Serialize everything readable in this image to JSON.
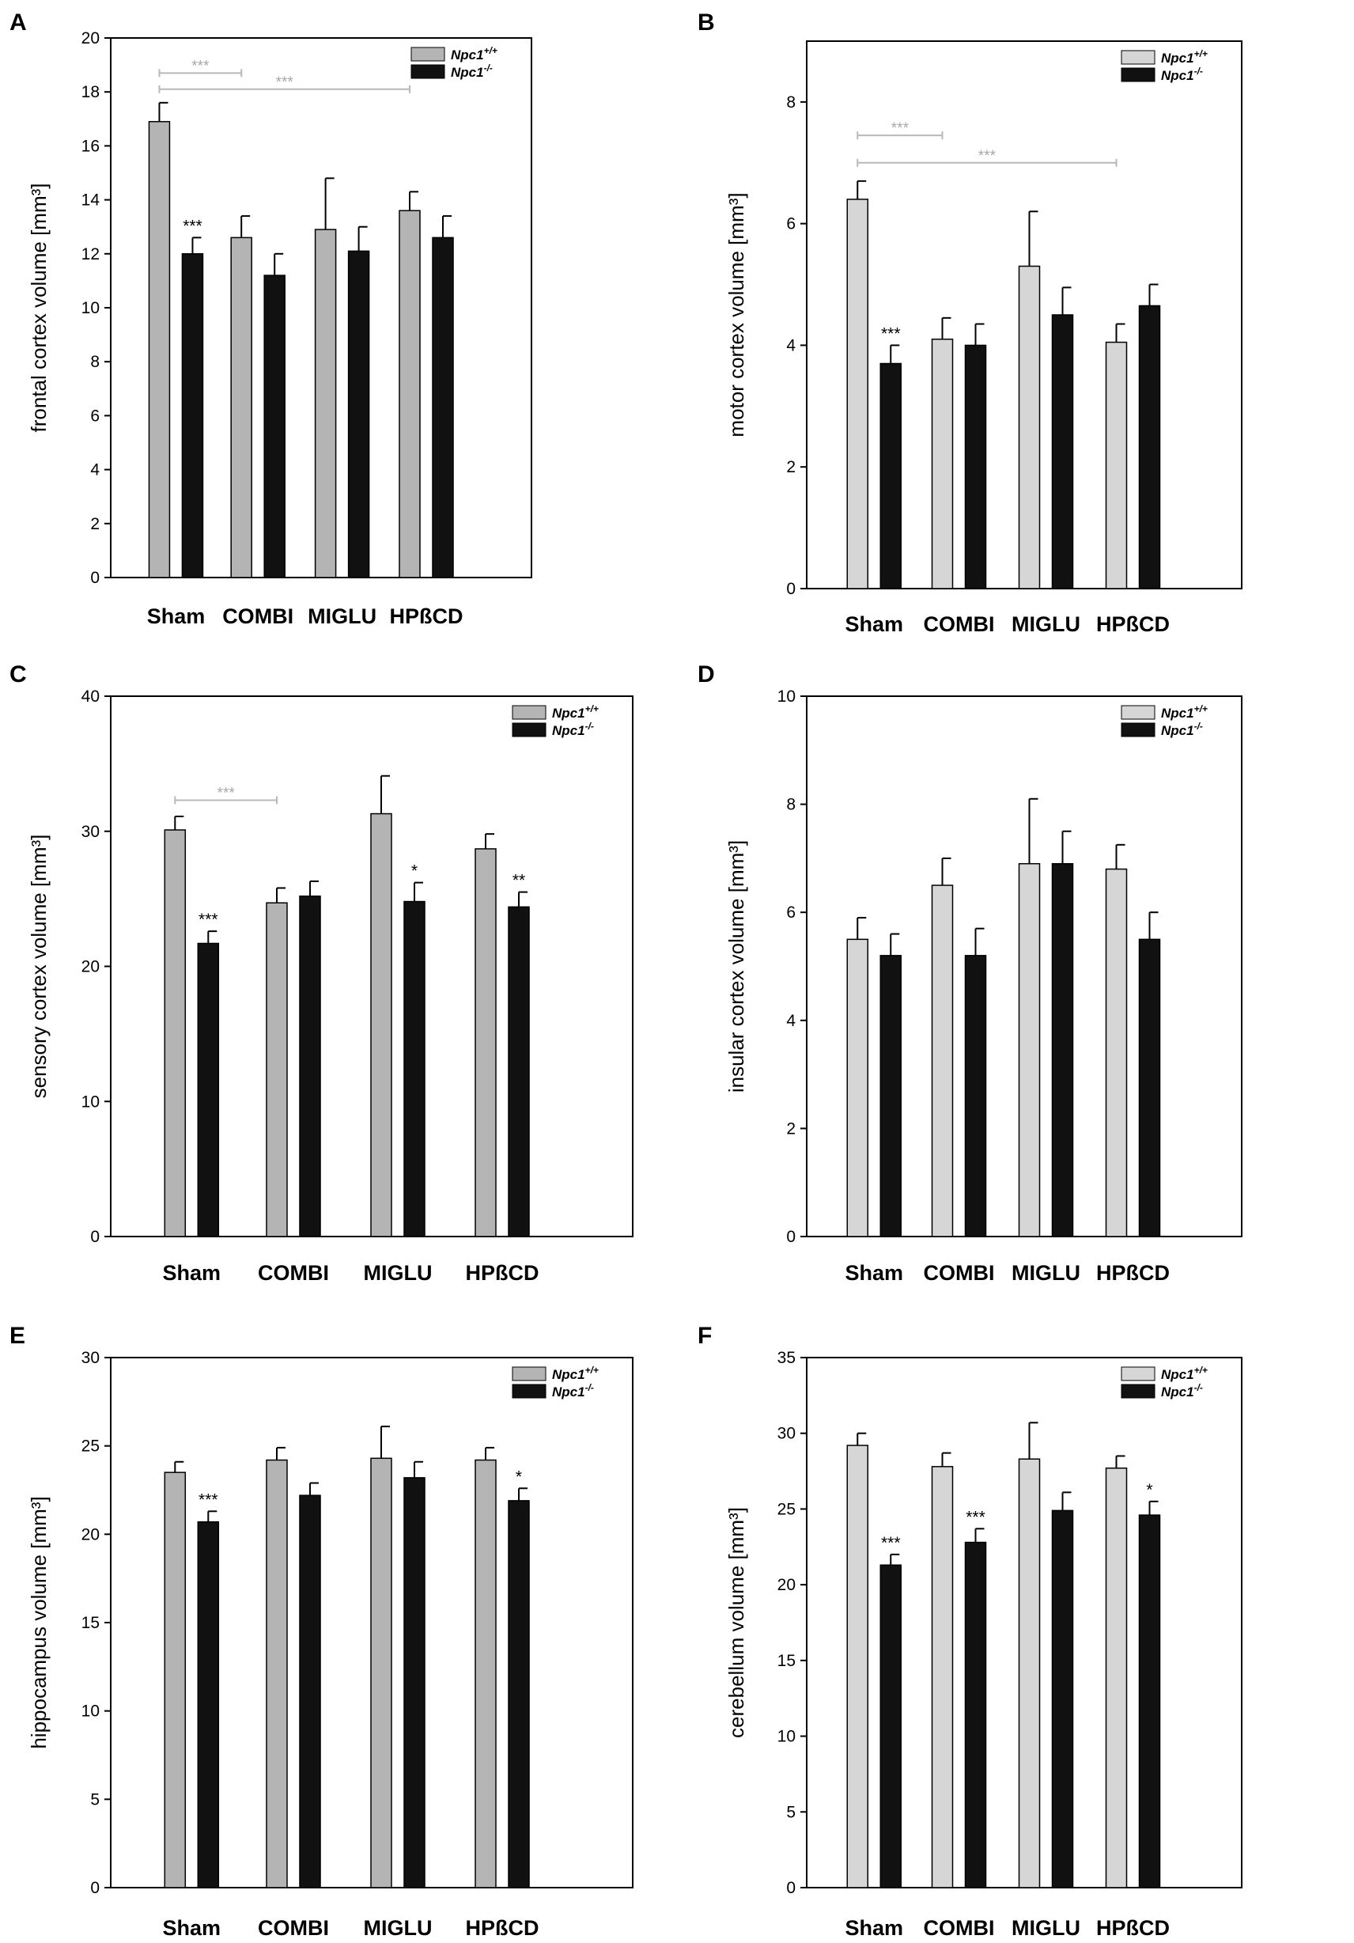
{
  "legend": {
    "series_prefix": "Npc1",
    "wt_sup": "+/+",
    "ko_sup": "-/-"
  },
  "colors": {
    "wt_dark": "#b4b4b4",
    "wt_light": "#d6d6d6",
    "ko": "#111111"
  },
  "chart_data": [
    {
      "panel": "A",
      "type": "bar",
      "ylabel": "frontal cortex volume [mm³]",
      "categories": [
        "Sham",
        "COMBI",
        "MIGLU",
        "HPßCD"
      ],
      "ylim": [
        0,
        20
      ],
      "yticks": [
        0,
        2,
        4,
        6,
        8,
        10,
        12,
        14,
        16,
        18,
        20
      ],
      "series": [
        {
          "name": "Npc1+/+",
          "values": [
            16.9,
            12.6,
            12.9,
            13.6
          ],
          "err": [
            0.7,
            0.8,
            1.9,
            0.7
          ]
        },
        {
          "name": "Npc1-/-",
          "values": [
            12.0,
            11.2,
            12.1,
            12.6
          ],
          "err": [
            0.6,
            0.8,
            0.9,
            0.8
          ]
        }
      ],
      "sig_labels": [
        {
          "cat": 0,
          "series": 1,
          "text": "***"
        }
      ],
      "brackets": [
        {
          "from_cat": 0,
          "to_cat": 1,
          "y": 18.7,
          "text": "***"
        },
        {
          "from_cat": 0,
          "to_cat": 3,
          "y": 18.1,
          "text": "***"
        }
      ]
    },
    {
      "panel": "B",
      "type": "bar",
      "ylabel": "motor cortex volume [mm³]",
      "categories": [
        "Sham",
        "COMBI",
        "MIGLU",
        "HPßCD"
      ],
      "ylim": [
        0,
        9
      ],
      "yticks": [
        0,
        2,
        4,
        6,
        8
      ],
      "series": [
        {
          "name": "Npc1+/+",
          "values": [
            6.4,
            4.1,
            5.3,
            4.05
          ],
          "err": [
            0.3,
            0.35,
            0.9,
            0.3
          ]
        },
        {
          "name": "Npc1-/-",
          "values": [
            3.7,
            4.0,
            4.5,
            4.65
          ],
          "err": [
            0.3,
            0.35,
            0.45,
            0.35
          ]
        }
      ],
      "sig_labels": [
        {
          "cat": 0,
          "series": 1,
          "text": "***"
        }
      ],
      "brackets": [
        {
          "from_cat": 0,
          "to_cat": 1,
          "y": 7.45,
          "text": "***"
        },
        {
          "from_cat": 0,
          "to_cat": 3,
          "y": 7.0,
          "text": "***"
        }
      ]
    },
    {
      "panel": "C",
      "type": "bar",
      "ylabel": "sensory cortex volume [mm³]",
      "categories": [
        "Sham",
        "COMBI",
        "MIGLU",
        "HPßCD"
      ],
      "ylim": [
        0,
        40
      ],
      "yticks": [
        0,
        10,
        20,
        30,
        40
      ],
      "series": [
        {
          "name": "Npc1+/+",
          "values": [
            30.1,
            24.7,
            31.3,
            28.7
          ],
          "err": [
            1.0,
            1.1,
            2.8,
            1.1
          ]
        },
        {
          "name": "Npc1-/-",
          "values": [
            21.7,
            25.2,
            24.8,
            24.4
          ],
          "err": [
            0.9,
            1.1,
            1.4,
            1.1
          ]
        }
      ],
      "sig_labels": [
        {
          "cat": 0,
          "series": 1,
          "text": "***"
        },
        {
          "cat": 2,
          "series": 1,
          "text": "*"
        },
        {
          "cat": 3,
          "series": 1,
          "text": "**"
        }
      ],
      "brackets": [
        {
          "from_cat": 0,
          "to_cat": 1,
          "y": 32.3,
          "text": "***"
        }
      ]
    },
    {
      "panel": "D",
      "type": "bar",
      "ylabel": "insular cortex volume [mm³]",
      "categories": [
        "Sham",
        "COMBI",
        "MIGLU",
        "HPßCD"
      ],
      "ylim": [
        0,
        10
      ],
      "yticks": [
        0,
        2,
        4,
        6,
        8,
        10
      ],
      "series": [
        {
          "name": "Npc1+/+",
          "values": [
            5.5,
            6.5,
            6.9,
            6.8
          ],
          "err": [
            0.4,
            0.5,
            1.2,
            0.45
          ]
        },
        {
          "name": "Npc1-/-",
          "values": [
            5.2,
            5.2,
            6.9,
            5.5
          ],
          "err": [
            0.4,
            0.5,
            0.6,
            0.5
          ]
        }
      ],
      "sig_labels": [],
      "brackets": []
    },
    {
      "panel": "E",
      "type": "bar",
      "ylabel": "hippocampus volume [mm³]",
      "categories": [
        "Sham",
        "COMBI",
        "MIGLU",
        "HPßCD"
      ],
      "ylim": [
        0,
        30
      ],
      "yticks": [
        0,
        5,
        10,
        15,
        20,
        25,
        30
      ],
      "series": [
        {
          "name": "Npc1+/+",
          "values": [
            23.5,
            24.2,
            24.3,
            24.2
          ],
          "err": [
            0.6,
            0.7,
            1.8,
            0.7
          ]
        },
        {
          "name": "Npc1-/-",
          "values": [
            20.7,
            22.2,
            23.2,
            21.9
          ],
          "err": [
            0.6,
            0.7,
            0.9,
            0.7
          ]
        }
      ],
      "sig_labels": [
        {
          "cat": 0,
          "series": 1,
          "text": "***"
        },
        {
          "cat": 3,
          "series": 1,
          "text": "*"
        }
      ],
      "brackets": []
    },
    {
      "panel": "F",
      "type": "bar",
      "ylabel": "cerebellum volume [mm³]",
      "categories": [
        "Sham",
        "COMBI",
        "MIGLU",
        "HPßCD"
      ],
      "ylim": [
        0,
        35
      ],
      "yticks": [
        0,
        5,
        10,
        15,
        20,
        25,
        30,
        35
      ],
      "series": [
        {
          "name": "Npc1+/+",
          "values": [
            29.2,
            27.8,
            28.3,
            27.7
          ],
          "err": [
            0.8,
            0.9,
            2.4,
            0.8
          ]
        },
        {
          "name": "Npc1-/-",
          "values": [
            21.3,
            22.8,
            24.9,
            24.6
          ],
          "err": [
            0.7,
            0.9,
            1.2,
            0.9
          ]
        }
      ],
      "sig_labels": [
        {
          "cat": 0,
          "series": 1,
          "text": "***"
        },
        {
          "cat": 1,
          "series": 1,
          "text": "***"
        },
        {
          "cat": 3,
          "series": 1,
          "text": "*"
        }
      ],
      "brackets": []
    }
  ]
}
